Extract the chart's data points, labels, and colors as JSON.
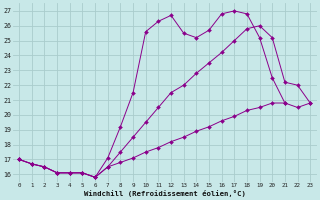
{
  "xlabel": "Windchill (Refroidissement éolien,°C)",
  "xlim": [
    -0.5,
    23.5
  ],
  "ylim": [
    15.5,
    27.5
  ],
  "yticks": [
    16,
    17,
    18,
    19,
    20,
    21,
    22,
    23,
    24,
    25,
    26,
    27
  ],
  "xticks": [
    0,
    1,
    2,
    3,
    4,
    5,
    6,
    7,
    8,
    9,
    10,
    11,
    12,
    13,
    14,
    15,
    16,
    17,
    18,
    19,
    20,
    21,
    22,
    23
  ],
  "background_color": "#c8e8e8",
  "grid_color": "#aacccc",
  "line_color": "#8b008b",
  "series1_x": [
    0,
    1,
    2,
    3,
    4,
    5,
    6,
    7,
    8,
    9,
    10,
    11,
    12,
    13,
    14,
    15,
    16,
    17,
    18,
    19,
    20,
    21
  ],
  "series1_y": [
    17.0,
    16.7,
    16.5,
    16.1,
    16.1,
    16.1,
    15.8,
    17.1,
    19.2,
    21.5,
    25.6,
    26.3,
    26.7,
    25.5,
    25.2,
    25.7,
    26.8,
    27.0,
    26.8,
    25.2,
    22.5,
    20.8
  ],
  "series2_x": [
    0,
    1,
    2,
    3,
    4,
    5,
    6,
    7,
    8,
    9,
    10,
    11,
    12,
    13,
    14,
    15,
    16,
    17,
    18,
    19,
    20,
    21,
    22,
    23
  ],
  "series2_y": [
    17.0,
    16.7,
    16.5,
    16.1,
    16.1,
    16.1,
    15.8,
    16.5,
    17.5,
    18.5,
    19.5,
    20.5,
    21.5,
    22.0,
    22.8,
    23.5,
    24.2,
    25.0,
    25.8,
    26.0,
    25.2,
    22.2,
    22.0,
    20.8
  ],
  "series3_x": [
    0,
    1,
    2,
    3,
    4,
    5,
    6,
    7,
    8,
    9,
    10,
    11,
    12,
    13,
    14,
    15,
    16,
    17,
    18,
    19,
    20,
    21,
    22,
    23
  ],
  "series3_y": [
    17.0,
    16.7,
    16.5,
    16.1,
    16.1,
    16.1,
    15.8,
    16.5,
    16.8,
    17.1,
    17.5,
    17.8,
    18.2,
    18.5,
    18.9,
    19.2,
    19.6,
    19.9,
    20.3,
    20.5,
    20.8,
    20.8,
    20.5,
    20.8
  ]
}
